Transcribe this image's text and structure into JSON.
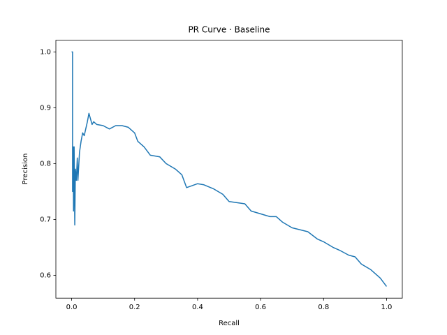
{
  "chart_data": {
    "type": "line",
    "title": "PR Curve · Baseline",
    "x_label": "Recall",
    "y_label": "Precision",
    "x": [
      0.0,
      0.003,
      0.003,
      0.005,
      0.006,
      0.008,
      0.01,
      0.012,
      0.015,
      0.018,
      0.02,
      0.025,
      0.03,
      0.035,
      0.04,
      0.05,
      0.055,
      0.06,
      0.065,
      0.07,
      0.08,
      0.1,
      0.12,
      0.14,
      0.16,
      0.18,
      0.2,
      0.21,
      0.23,
      0.25,
      0.28,
      0.3,
      0.33,
      0.35,
      0.365,
      0.38,
      0.4,
      0.42,
      0.45,
      0.48,
      0.5,
      0.55,
      0.57,
      0.6,
      0.63,
      0.65,
      0.67,
      0.7,
      0.75,
      0.78,
      0.8,
      0.83,
      0.85,
      0.88,
      0.9,
      0.92,
      0.95,
      0.98,
      1.0
    ],
    "series": [
      {
        "name": "Baseline",
        "color": "#1f77b4",
        "values": [
          1.0,
          1.0,
          0.75,
          0.83,
          0.715,
          0.83,
          0.69,
          0.79,
          0.77,
          0.81,
          0.77,
          0.82,
          0.84,
          0.855,
          0.85,
          0.875,
          0.89,
          0.88,
          0.87,
          0.875,
          0.87,
          0.868,
          0.862,
          0.868,
          0.868,
          0.865,
          0.855,
          0.84,
          0.83,
          0.815,
          0.812,
          0.8,
          0.79,
          0.78,
          0.757,
          0.76,
          0.764,
          0.762,
          0.755,
          0.745,
          0.732,
          0.728,
          0.715,
          0.71,
          0.705,
          0.705,
          0.695,
          0.685,
          0.678,
          0.665,
          0.66,
          0.65,
          0.645,
          0.636,
          0.633,
          0.62,
          0.61,
          0.595,
          0.58
        ]
      }
    ],
    "xlim": [
      -0.05,
      1.05
    ],
    "ylim": [
      0.559,
      1.021
    ],
    "xticks": [
      {
        "value": 0,
        "label": "0.0"
      },
      0.2,
      0.4,
      0.6,
      0.8,
      {
        "value": 1,
        "label": "1.0"
      }
    ],
    "yticks": [
      0.6,
      0.7,
      0.8,
      0.9,
      {
        "value": 1,
        "label": "1.0"
      }
    ]
  }
}
